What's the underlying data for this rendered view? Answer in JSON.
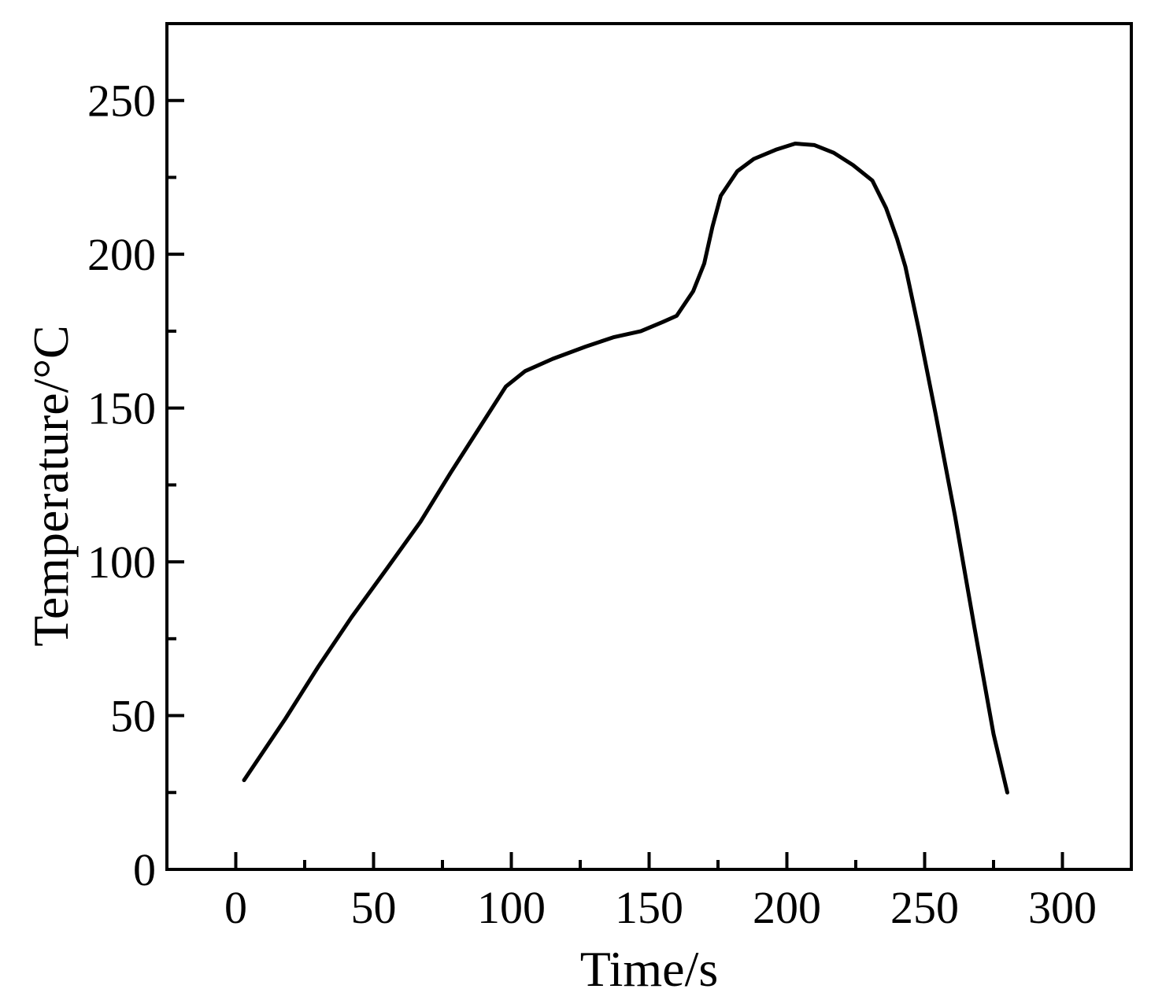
{
  "chart_data": {
    "type": "line",
    "title": "",
    "xlabel": "Time/s",
    "ylabel": "Temperature/°C",
    "xlim": [
      -25,
      325
    ],
    "ylim": [
      0,
      275
    ],
    "x_ticks": [
      0,
      50,
      100,
      150,
      200,
      250,
      300
    ],
    "x_tick_labels": [
      "0",
      "50",
      "100",
      "150",
      "200",
      "250",
      "300"
    ],
    "x_minor_ticks": [
      25,
      75,
      125,
      175,
      225,
      275
    ],
    "y_ticks": [
      0,
      50,
      100,
      150,
      200,
      250
    ],
    "y_tick_labels": [
      "0",
      "50",
      "100",
      "150",
      "200",
      "250"
    ],
    "y_minor_ticks": [
      25,
      75,
      125,
      175,
      225
    ],
    "grid": false,
    "legend": "none",
    "line_color": "#000000",
    "series": [
      {
        "x": [
          3,
          18,
          30,
          42,
          55,
          67,
          78,
          88,
          98,
          105,
          115,
          127,
          137,
          147,
          155,
          160,
          166,
          170,
          173,
          176,
          182,
          188,
          196,
          203,
          210,
          217,
          224,
          231,
          236,
          240,
          243,
          248,
          254,
          261,
          268,
          275,
          280
        ],
        "y": [
          29,
          49,
          66,
          82,
          98,
          113,
          129,
          143,
          157,
          162,
          166,
          170,
          173,
          175,
          178,
          180,
          188,
          197,
          209,
          219,
          227,
          231,
          234,
          236,
          235.5,
          233,
          229,
          224,
          215,
          205,
          196,
          175,
          148,
          115,
          79,
          44,
          25
        ]
      }
    ]
  }
}
